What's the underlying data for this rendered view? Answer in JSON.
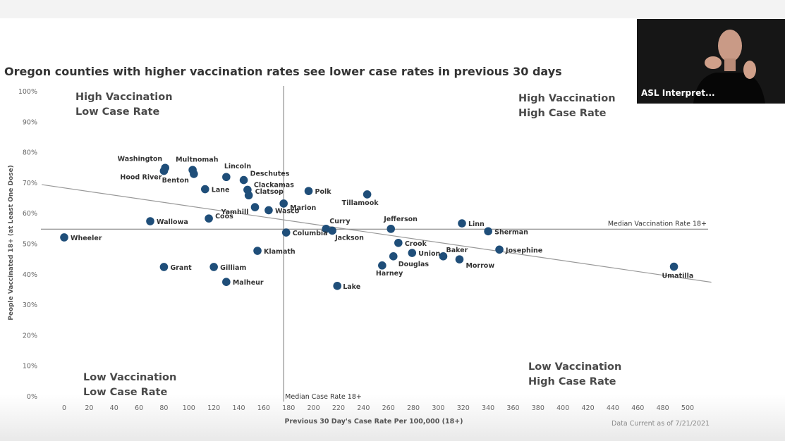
{
  "chart_data": {
    "type": "scatter",
    "title": "Oregon counties with higher vaccination rates see lower case rates in previous 30 days",
    "xlabel": "Previous 30 Day's Case Rate Per 100,000 (18+)",
    "ylabel": "People Vaccinated 18+ (at Least One Dose)",
    "xlim": [
      0,
      500
    ],
    "ylim": [
      0,
      100
    ],
    "x_ticks": [
      "0",
      "20",
      "40",
      "60",
      "80",
      "100",
      "120",
      "140",
      "160",
      "180",
      "200",
      "220",
      "240",
      "260",
      "280",
      "300",
      "320",
      "340",
      "360",
      "380",
      "400",
      "420",
      "440",
      "460",
      "480",
      "500"
    ],
    "y_ticks": [
      "0%",
      "10%",
      "20%",
      "30%",
      "40%",
      "50%",
      "60%",
      "70%",
      "80%",
      "90%",
      "100%"
    ],
    "median_case_rate": 176,
    "median_case_label": "Median Case Rate 18+",
    "median_vaccination_rate": 54.9,
    "median_vaccination_label": "Median Vaccination Rate 18+",
    "trendline": [
      [
        -18,
        69.5
      ],
      [
        519,
        37.5
      ]
    ],
    "quadrant_labels": {
      "top_left": [
        "High Vaccination",
        "Low Case Rate"
      ],
      "top_right": [
        "High Vaccination",
        "High Case Rate"
      ],
      "bottom_left": [
        "Low Vaccination",
        "Low Case Rate"
      ],
      "bottom_right": [
        "Low Vaccination",
        "High Case Rate"
      ]
    },
    "point_color": "#1f4e79",
    "points": [
      {
        "name": "Wheeler",
        "x": 0,
        "y": 52.2
      },
      {
        "name": "Washington",
        "x": 81,
        "y": 75.0
      },
      {
        "name": "Hood River",
        "x": 80,
        "y": 74.0
      },
      {
        "name": "Multnomah",
        "x": 103,
        "y": 74.3
      },
      {
        "name": "Benton",
        "x": 104,
        "y": 73.0
      },
      {
        "name": "Lincoln",
        "x": 130,
        "y": 72.0
      },
      {
        "name": "Deschutes",
        "x": 144,
        "y": 71.0
      },
      {
        "name": "Lane",
        "x": 113,
        "y": 68.0
      },
      {
        "name": "Clackamas",
        "x": 147,
        "y": 67.8
      },
      {
        "name": "Clatsop",
        "x": 148,
        "y": 66.0
      },
      {
        "name": "Polk",
        "x": 196,
        "y": 67.4
      },
      {
        "name": "Tillamook",
        "x": 243,
        "y": 66.3
      },
      {
        "name": "Marion",
        "x": 176,
        "y": 63.3
      },
      {
        "name": "Yamhill",
        "x": 153,
        "y": 62.1
      },
      {
        "name": "Wasco",
        "x": 164,
        "y": 61.1
      },
      {
        "name": "Wallowa",
        "x": 69,
        "y": 57.5
      },
      {
        "name": "Coos",
        "x": 116,
        "y": 58.4
      },
      {
        "name": "Curry",
        "x": 210,
        "y": 55.0
      },
      {
        "name": "Columbia",
        "x": 178,
        "y": 53.8
      },
      {
        "name": "Jackson",
        "x": 215,
        "y": 54.4
      },
      {
        "name": "Jefferson",
        "x": 262,
        "y": 55.0
      },
      {
        "name": "Linn",
        "x": 319,
        "y": 56.8
      },
      {
        "name": "Sherman",
        "x": 340,
        "y": 54.2
      },
      {
        "name": "Crook",
        "x": 268,
        "y": 50.4
      },
      {
        "name": "Union",
        "x": 279,
        "y": 47.1
      },
      {
        "name": "Douglas",
        "x": 264,
        "y": 46.0
      },
      {
        "name": "Baker",
        "x": 304,
        "y": 46.0
      },
      {
        "name": "Morrow",
        "x": 317,
        "y": 45.0
      },
      {
        "name": "Josephine",
        "x": 349,
        "y": 48.2
      },
      {
        "name": "Harney",
        "x": 255,
        "y": 43.0
      },
      {
        "name": "Klamath",
        "x": 155,
        "y": 47.8
      },
      {
        "name": "Grant",
        "x": 80,
        "y": 42.5
      },
      {
        "name": "Gilliam",
        "x": 120,
        "y": 42.5
      },
      {
        "name": "Malheur",
        "x": 130,
        "y": 37.6
      },
      {
        "name": "Lake",
        "x": 219,
        "y": 36.3
      },
      {
        "name": "Umatilla",
        "x": 489,
        "y": 42.6
      }
    ]
  },
  "video": {
    "label": "ASL Interpret..."
  },
  "footer_note": "Data Current as of 7/21/2021"
}
